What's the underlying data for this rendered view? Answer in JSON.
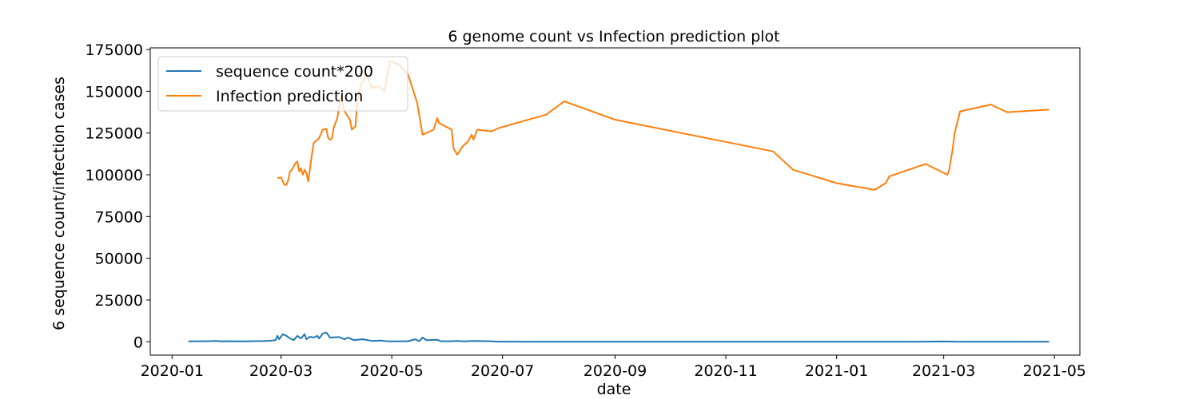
{
  "chart_data": {
    "type": "line",
    "title": "6 genome count vs Infection prediction plot",
    "xlabel": "date",
    "ylabel": "6 sequence count/infection cases",
    "xlim": [
      "2019-12-20",
      "2021-05-15"
    ],
    "ylim": [
      -8000,
      176000
    ],
    "xticks": [
      "2020-01",
      "2020-03",
      "2020-05",
      "2020-07",
      "2020-09",
      "2020-11",
      "2021-01",
      "2021-03",
      "2021-05"
    ],
    "yticks": [
      0,
      25000,
      50000,
      75000,
      100000,
      125000,
      150000,
      175000
    ],
    "legend_position": "top-left",
    "series": [
      {
        "name": "sequence count*200",
        "color": "#1f77b4",
        "points": [
          [
            "2020-01-10",
            200
          ],
          [
            "2020-01-20",
            300
          ],
          [
            "2020-01-25",
            500
          ],
          [
            "2020-01-28",
            200
          ],
          [
            "2020-02-01",
            300
          ],
          [
            "2020-02-10",
            200
          ],
          [
            "2020-02-20",
            400
          ],
          [
            "2020-02-24",
            600
          ],
          [
            "2020-02-27",
            1000
          ],
          [
            "2020-02-28",
            3500
          ],
          [
            "2020-02-29",
            1500
          ],
          [
            "2020-03-02",
            4500
          ],
          [
            "2020-03-04",
            3500
          ],
          [
            "2020-03-06",
            2000
          ],
          [
            "2020-03-08",
            1000
          ],
          [
            "2020-03-10",
            3500
          ],
          [
            "2020-03-12",
            2000
          ],
          [
            "2020-03-14",
            4500
          ],
          [
            "2020-03-15",
            1500
          ],
          [
            "2020-03-17",
            3000
          ],
          [
            "2020-03-19",
            2500
          ],
          [
            "2020-03-21",
            3500
          ],
          [
            "2020-03-22",
            2000
          ],
          [
            "2020-03-24",
            5000
          ],
          [
            "2020-03-26",
            5500
          ],
          [
            "2020-03-28",
            2500
          ],
          [
            "2020-04-02",
            2800
          ],
          [
            "2020-04-05",
            1500
          ],
          [
            "2020-04-07",
            2500
          ],
          [
            "2020-04-10",
            1000
          ],
          [
            "2020-04-15",
            1500
          ],
          [
            "2020-04-20",
            500
          ],
          [
            "2020-04-25",
            700
          ],
          [
            "2020-04-28",
            300
          ],
          [
            "2020-05-02",
            200
          ],
          [
            "2020-05-10",
            300
          ],
          [
            "2020-05-14",
            1500
          ],
          [
            "2020-05-16",
            300
          ],
          [
            "2020-05-18",
            2500
          ],
          [
            "2020-05-20",
            1000
          ],
          [
            "2020-05-26",
            1200
          ],
          [
            "2020-05-28",
            300
          ],
          [
            "2020-06-03",
            300
          ],
          [
            "2020-06-06",
            500
          ],
          [
            "2020-06-10",
            200
          ],
          [
            "2020-06-15",
            500
          ],
          [
            "2020-06-25",
            300
          ],
          [
            "2020-06-28",
            100
          ],
          [
            "2020-07-15",
            0
          ],
          [
            "2020-09-01",
            0
          ],
          [
            "2020-11-01",
            0
          ],
          [
            "2021-01-01",
            0
          ],
          [
            "2021-02-15",
            50
          ],
          [
            "2021-03-01",
            150
          ],
          [
            "2021-03-10",
            50
          ],
          [
            "2021-04-01",
            0
          ],
          [
            "2021-04-28",
            0
          ]
        ]
      },
      {
        "name": "Infection prediction",
        "color": "#ff7f0e",
        "points": [
          [
            "2020-02-28",
            98000
          ],
          [
            "2020-03-01",
            98500
          ],
          [
            "2020-03-02",
            96000
          ],
          [
            "2020-03-03",
            94000
          ],
          [
            "2020-03-04",
            94000
          ],
          [
            "2020-03-05",
            97000
          ],
          [
            "2020-03-06",
            102000
          ],
          [
            "2020-03-07",
            103000
          ],
          [
            "2020-03-09",
            107000
          ],
          [
            "2020-03-10",
            108000
          ],
          [
            "2020-03-11",
            102000
          ],
          [
            "2020-03-12",
            104000
          ],
          [
            "2020-03-13",
            100000
          ],
          [
            "2020-03-14",
            103000
          ],
          [
            "2020-03-15",
            101000
          ],
          [
            "2020-03-16",
            96000
          ],
          [
            "2020-03-17",
            104000
          ],
          [
            "2020-03-18",
            112000
          ],
          [
            "2020-03-19",
            119000
          ],
          [
            "2020-03-21",
            121000
          ],
          [
            "2020-03-22",
            122000
          ],
          [
            "2020-03-24",
            127000
          ],
          [
            "2020-03-26",
            127500
          ],
          [
            "2020-03-27",
            122000
          ],
          [
            "2020-03-28",
            121000
          ],
          [
            "2020-03-29",
            121500
          ],
          [
            "2020-03-30",
            128000
          ],
          [
            "2020-04-01",
            134000
          ],
          [
            "2020-04-03",
            147000
          ],
          [
            "2020-04-05",
            138000
          ],
          [
            "2020-04-08",
            133000
          ],
          [
            "2020-04-09",
            127000
          ],
          [
            "2020-04-11",
            129000
          ],
          [
            "2020-04-12",
            144000
          ],
          [
            "2020-04-14",
            154000
          ],
          [
            "2020-04-17",
            160000
          ],
          [
            "2020-04-20",
            152000
          ],
          [
            "2020-04-24",
            153000
          ],
          [
            "2020-04-27",
            150000
          ],
          [
            "2020-04-30",
            168000
          ],
          [
            "2020-05-05",
            166000
          ],
          [
            "2020-05-10",
            160000
          ],
          [
            "2020-05-15",
            143000
          ],
          [
            "2020-05-18",
            124000
          ],
          [
            "2020-05-22",
            126000
          ],
          [
            "2020-05-24",
            127000
          ],
          [
            "2020-05-26",
            134000
          ],
          [
            "2020-05-27",
            131000
          ],
          [
            "2020-06-03",
            127000
          ],
          [
            "2020-06-04",
            116000
          ],
          [
            "2020-06-06",
            112000
          ],
          [
            "2020-06-09",
            117000
          ],
          [
            "2020-06-12",
            120000
          ],
          [
            "2020-06-14",
            124000
          ],
          [
            "2020-06-15",
            121000
          ],
          [
            "2020-06-17",
            127000
          ],
          [
            "2020-06-25",
            126000
          ],
          [
            "2020-06-29",
            128000
          ],
          [
            "2020-07-25",
            136000
          ],
          [
            "2020-08-04",
            144000
          ],
          [
            "2020-09-01",
            133000
          ],
          [
            "2020-11-27",
            114000
          ],
          [
            "2020-12-08",
            103000
          ],
          [
            "2021-01-01",
            95000
          ],
          [
            "2021-01-22",
            91000
          ],
          [
            "2021-01-28",
            95000
          ],
          [
            "2021-01-30",
            99000
          ],
          [
            "2021-02-19",
            106500
          ],
          [
            "2021-03-03",
            100000
          ],
          [
            "2021-03-04",
            103000
          ],
          [
            "2021-03-06",
            116000
          ],
          [
            "2021-03-07",
            125000
          ],
          [
            "2021-03-10",
            138000
          ],
          [
            "2021-03-27",
            142000
          ],
          [
            "2021-04-05",
            137500
          ],
          [
            "2021-04-28",
            139000
          ]
        ]
      }
    ]
  }
}
